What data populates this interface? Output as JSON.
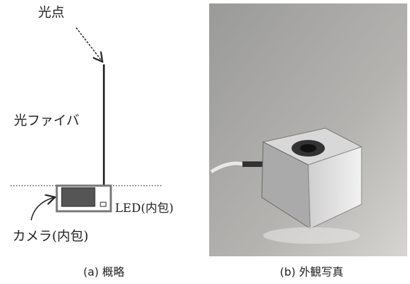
{
  "panel_a": {
    "labels": {
      "light_spot": "光点",
      "fiber": "光ファイバ",
      "led": "LED(内包)",
      "camera": "カメラ(内包)"
    },
    "caption": "(a) 概略"
  },
  "panel_b": {
    "caption": "(b) 外観写真"
  }
}
